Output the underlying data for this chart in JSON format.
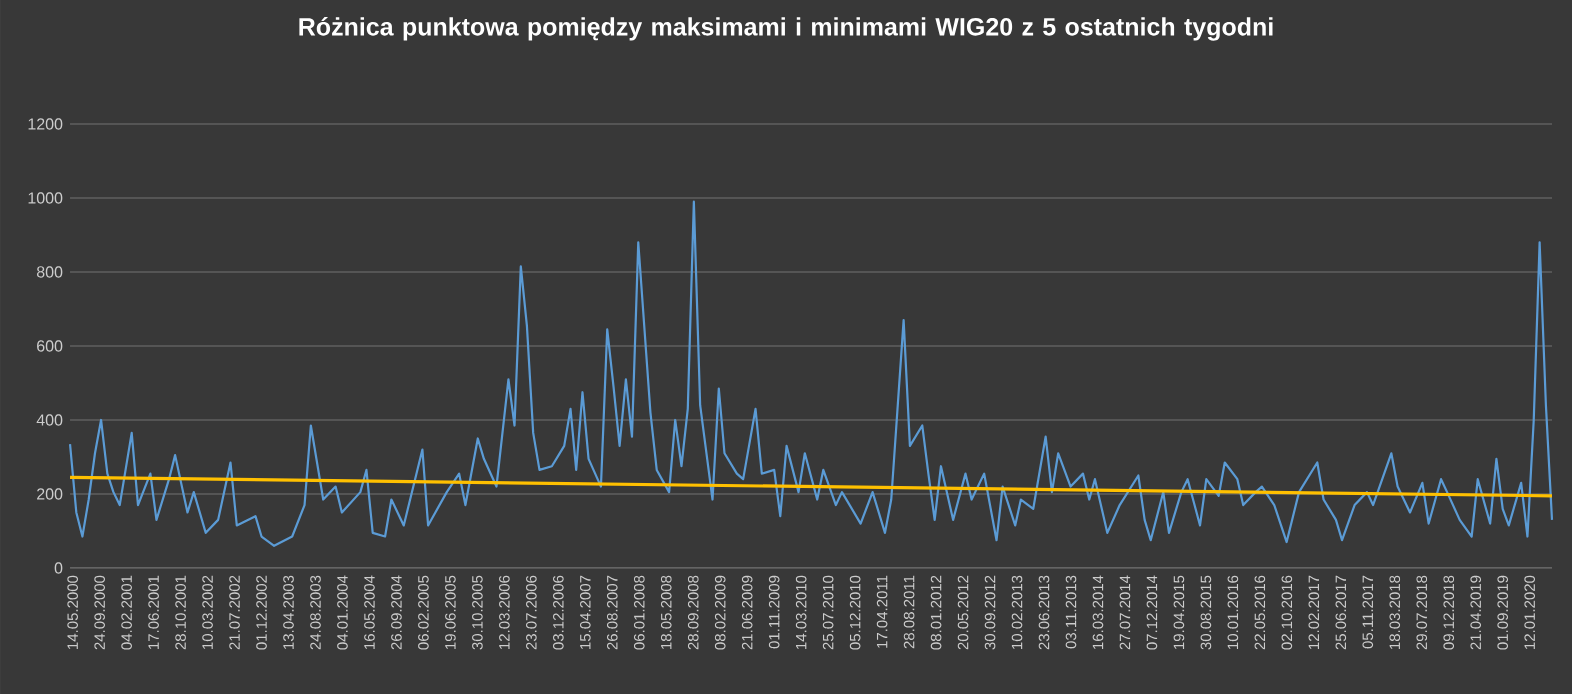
{
  "chart_data": {
    "type": "line",
    "title": "Różnica punktowa pomiędzy maksimami i minimami WIG20 z 5 ostatnich tygodni",
    "xlim": [
      "2000-05-01",
      "2020-05-01"
    ],
    "ylim": [
      0,
      1200
    ],
    "yticks": [
      0,
      200,
      400,
      600,
      800,
      1000,
      1200
    ],
    "grid": "y",
    "marker": "none",
    "xticks": [
      {
        "value": "2000-05-14",
        "label": "14.05.2000"
      },
      {
        "value": "2000-09-24",
        "label": "24.09.2000"
      },
      {
        "value": "2001-02-04",
        "label": "04.02.2001"
      },
      {
        "value": "2001-06-17",
        "label": "17.06.2001"
      },
      {
        "value": "2001-10-28",
        "label": "28.10.2001"
      },
      {
        "value": "2002-03-10",
        "label": "10.03.2002"
      },
      {
        "value": "2002-07-21",
        "label": "21.07.2002"
      },
      {
        "value": "2002-12-01",
        "label": "01.12.2002"
      },
      {
        "value": "2003-04-13",
        "label": "13.04.2003"
      },
      {
        "value": "2003-08-24",
        "label": "24.08.2003"
      },
      {
        "value": "2004-01-04",
        "label": "04.01.2004"
      },
      {
        "value": "2004-05-16",
        "label": "16.05.2004"
      },
      {
        "value": "2004-09-26",
        "label": "26.09.2004"
      },
      {
        "value": "2005-02-06",
        "label": "06.02.2005"
      },
      {
        "value": "2005-06-19",
        "label": "19.06.2005"
      },
      {
        "value": "2005-10-30",
        "label": "30.10.2005"
      },
      {
        "value": "2006-03-12",
        "label": "12.03.2006"
      },
      {
        "value": "2006-07-23",
        "label": "23.07.2006"
      },
      {
        "value": "2006-12-03",
        "label": "03.12.2006"
      },
      {
        "value": "2007-04-15",
        "label": "15.04.2007"
      },
      {
        "value": "2007-08-26",
        "label": "26.08.2007"
      },
      {
        "value": "2008-01-06",
        "label": "06.01.2008"
      },
      {
        "value": "2008-05-18",
        "label": "18.05.2008"
      },
      {
        "value": "2008-09-28",
        "label": "28.09.2008"
      },
      {
        "value": "2009-02-08",
        "label": "08.02.2009"
      },
      {
        "value": "2009-06-21",
        "label": "21.06.2009"
      },
      {
        "value": "2009-11-01",
        "label": "01.11.2009"
      },
      {
        "value": "2010-03-14",
        "label": "14.03.2010"
      },
      {
        "value": "2010-07-25",
        "label": "25.07.2010"
      },
      {
        "value": "2010-12-05",
        "label": "05.12.2010"
      },
      {
        "value": "2011-04-17",
        "label": "17.04.2011"
      },
      {
        "value": "2011-08-28",
        "label": "28.08.2011"
      },
      {
        "value": "2012-01-08",
        "label": "08.01.2012"
      },
      {
        "value": "2012-05-20",
        "label": "20.05.2012"
      },
      {
        "value": "2012-09-30",
        "label": "30.09.2012"
      },
      {
        "value": "2013-02-10",
        "label": "10.02.2013"
      },
      {
        "value": "2013-06-23",
        "label": "23.06.2013"
      },
      {
        "value": "2013-11-03",
        "label": "03.11.2013"
      },
      {
        "value": "2014-03-16",
        "label": "16.03.2014"
      },
      {
        "value": "2014-07-27",
        "label": "27.07.2014"
      },
      {
        "value": "2014-12-07",
        "label": "07.12.2014"
      },
      {
        "value": "2015-04-19",
        "label": "19.04.2015"
      },
      {
        "value": "2015-08-30",
        "label": "30.08.2015"
      },
      {
        "value": "2016-01-10",
        "label": "10.01.2016"
      },
      {
        "value": "2016-05-22",
        "label": "22.05.2016"
      },
      {
        "value": "2016-10-02",
        "label": "02.10.2016"
      },
      {
        "value": "2017-02-12",
        "label": "12.02.2017"
      },
      {
        "value": "2017-06-25",
        "label": "25.06.2017"
      },
      {
        "value": "2017-11-05",
        "label": "05.11.2017"
      },
      {
        "value": "2018-03-18",
        "label": "18.03.2018"
      },
      {
        "value": "2018-07-29",
        "label": "29.07.2018"
      },
      {
        "value": "2018-12-09",
        "label": "09.12.2018"
      },
      {
        "value": "2019-04-21",
        "label": "21.04.2019"
      },
      {
        "value": "2019-09-01",
        "label": "01.09.2019"
      },
      {
        "value": "2020-01-12",
        "label": "12.01.2020"
      }
    ],
    "series": [
      {
        "color": "#5b9bd5",
        "x": [
          "2000-05",
          "2000-06",
          "2000-07",
          "2000-08",
          "2000-09",
          "2000-10",
          "2000-11",
          "2000-12",
          "2001-01",
          "2001-03",
          "2001-04",
          "2001-06",
          "2001-07",
          "2001-09",
          "2001-10",
          "2001-12",
          "2002-01",
          "2002-03",
          "2002-05",
          "2002-07",
          "2002-08",
          "2002-11",
          "2002-12",
          "2003-02",
          "2003-05",
          "2003-07",
          "2003-08",
          "2003-10",
          "2003-12",
          "2004-01",
          "2004-04",
          "2004-05",
          "2004-06",
          "2004-08",
          "2004-09",
          "2004-11",
          "2005-02",
          "2005-03",
          "2005-06",
          "2005-08",
          "2005-09",
          "2005-11",
          "2005-12",
          "2006-02",
          "2006-04",
          "2006-05",
          "2006-06",
          "2006-07",
          "2006-08",
          "2006-09",
          "2006-11",
          "2007-01",
          "2007-02",
          "2007-03",
          "2007-04",
          "2007-05",
          "2007-07",
          "2007-08",
          "2007-09",
          "2007-10",
          "2007-11",
          "2007-12",
          "2008-01",
          "2008-03",
          "2008-04",
          "2008-06",
          "2008-07",
          "2008-08",
          "2008-09",
          "2008-10",
          "2008-11",
          "2009-01",
          "2009-02",
          "2009-03",
          "2009-05",
          "2009-06",
          "2009-08",
          "2009-09",
          "2009-11",
          "2009-12",
          "2010-01",
          "2010-03",
          "2010-04",
          "2010-06",
          "2010-07",
          "2010-09",
          "2010-10",
          "2011-01",
          "2011-03",
          "2011-05",
          "2011-06",
          "2011-08",
          "2011-09",
          "2011-11",
          "2011-12",
          "2012-01",
          "2012-02",
          "2012-04",
          "2012-06",
          "2012-07",
          "2012-09",
          "2012-11",
          "2012-12",
          "2013-02",
          "2013-03",
          "2013-05",
          "2013-07",
          "2013-08",
          "2013-09",
          "2013-11",
          "2014-01",
          "2014-02",
          "2014-03",
          "2014-05",
          "2014-07",
          "2014-10",
          "2014-11",
          "2014-12",
          "2015-02",
          "2015-03",
          "2015-05",
          "2015-06",
          "2015-08",
          "2015-09",
          "2015-11",
          "2015-12",
          "2016-02",
          "2016-03",
          "2016-05",
          "2016-06",
          "2016-08",
          "2016-10",
          "2016-12",
          "2017-03",
          "2017-04",
          "2017-06",
          "2017-07",
          "2017-09",
          "2017-11",
          "2017-12",
          "2018-03",
          "2018-04",
          "2018-06",
          "2018-08",
          "2018-09",
          "2018-11",
          "2018-12",
          "2019-02",
          "2019-04",
          "2019-05",
          "2019-07",
          "2019-08",
          "2019-09",
          "2019-10",
          "2019-12",
          "2020-01",
          "2020-02",
          "2020-03",
          "2020-04",
          "2020-05"
        ],
        "values": [
          335,
          150,
          85,
          185,
          310,
          400,
          255,
          205,
          170,
          365,
          170,
          255,
          130,
          240,
          305,
          150,
          205,
          95,
          130,
          285,
          115,
          140,
          85,
          60,
          85,
          170,
          385,
          185,
          220,
          150,
          205,
          265,
          95,
          85,
          185,
          115,
          320,
          115,
          205,
          255,
          170,
          350,
          295,
          220,
          510,
          385,
          815,
          655,
          365,
          265,
          275,
          330,
          430,
          265,
          475,
          295,
          220,
          645,
          490,
          330,
          510,
          355,
          880,
          420,
          265,
          205,
          400,
          275,
          430,
          990,
          440,
          185,
          485,
          310,
          255,
          240,
          430,
          255,
          265,
          140,
          330,
          205,
          310,
          185,
          265,
          170,
          205,
          120,
          205,
          95,
          185,
          670,
          330,
          385,
          255,
          130,
          275,
          130,
          255,
          185,
          255,
          75,
          220,
          115,
          185,
          160,
          355,
          205,
          310,
          220,
          255,
          185,
          240,
          95,
          170,
          250,
          130,
          75,
          205,
          95,
          205,
          240,
          115,
          240,
          195,
          285,
          240,
          170,
          205,
          220,
          170,
          70,
          205,
          285,
          185,
          130,
          75,
          170,
          205,
          170,
          310,
          220,
          150,
          230,
          120,
          240,
          205,
          130,
          85,
          240,
          120,
          295,
          160,
          115,
          230,
          85,
          400,
          880,
          440,
          130
        ]
      },
      {
        "color": "#ffc000",
        "x": [
          "2000-05",
          "2020-05"
        ],
        "values": [
          245,
          195
        ]
      }
    ]
  }
}
